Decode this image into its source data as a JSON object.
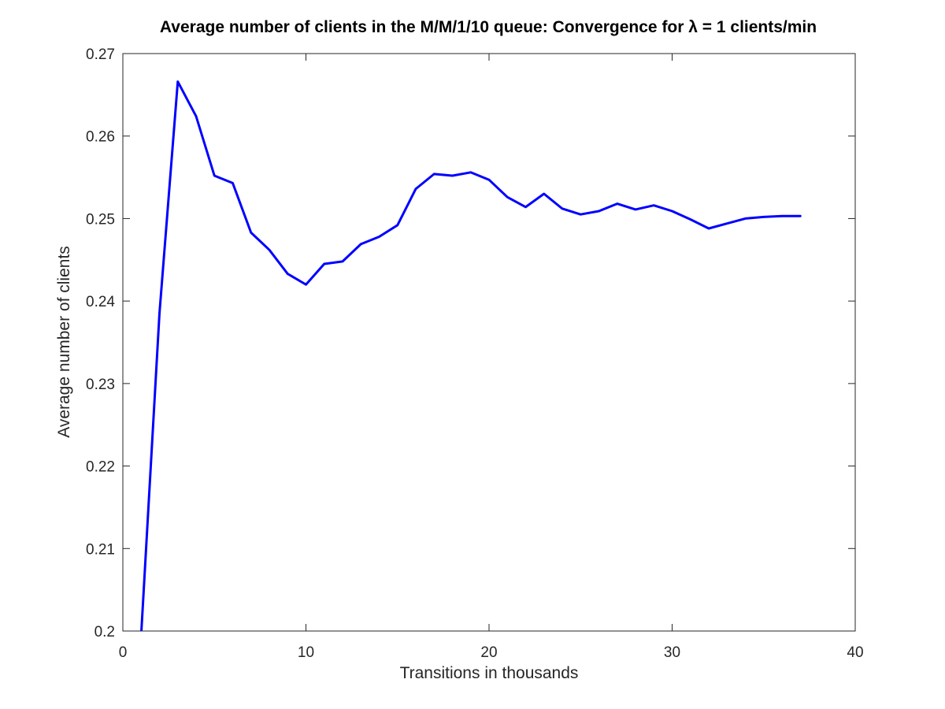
{
  "chart_data": {
    "type": "line",
    "title": "Average number of clients in the M/M/1/10 queue: Convergence for λ = 1 clients/min",
    "xlabel": "Transitions in thousands",
    "ylabel": "Average number of clients",
    "xlim": [
      0,
      40
    ],
    "ylim": [
      0.2,
      0.27
    ],
    "xticks": [
      0,
      10,
      20,
      30,
      40
    ],
    "xtick_labels": [
      "0",
      "10",
      "20",
      "30",
      "40"
    ],
    "yticks": [
      0.2,
      0.21,
      0.22,
      0.23,
      0.24,
      0.25,
      0.26,
      0.27
    ],
    "ytick_labels": [
      "0.2",
      "0.21",
      "0.22",
      "0.23",
      "0.24",
      "0.25",
      "0.26",
      "0.27"
    ],
    "grid": false,
    "box": true,
    "series": [
      {
        "color": "#0000ff",
        "x": [
          1,
          2,
          3,
          4,
          5,
          6,
          7,
          8,
          9,
          10,
          11,
          12,
          13,
          14,
          15,
          16,
          17,
          18,
          19,
          20,
          21,
          22,
          23,
          24,
          25,
          26,
          27,
          28,
          29,
          30,
          31,
          32,
          33,
          34,
          35,
          36,
          37
        ],
        "y": [
          0.1995,
          0.2385,
          0.2666,
          0.2624,
          0.2552,
          0.2543,
          0.2483,
          0.2462,
          0.2433,
          0.242,
          0.2445,
          0.2448,
          0.2469,
          0.2478,
          0.2492,
          0.2536,
          0.2554,
          0.2552,
          0.2556,
          0.2547,
          0.2526,
          0.2514,
          0.253,
          0.2512,
          0.2505,
          0.2509,
          0.2518,
          0.2511,
          0.2516,
          0.2509,
          0.2499,
          0.2488,
          0.2494,
          0.25,
          0.2502,
          0.2503,
          0.2503
        ]
      }
    ]
  }
}
